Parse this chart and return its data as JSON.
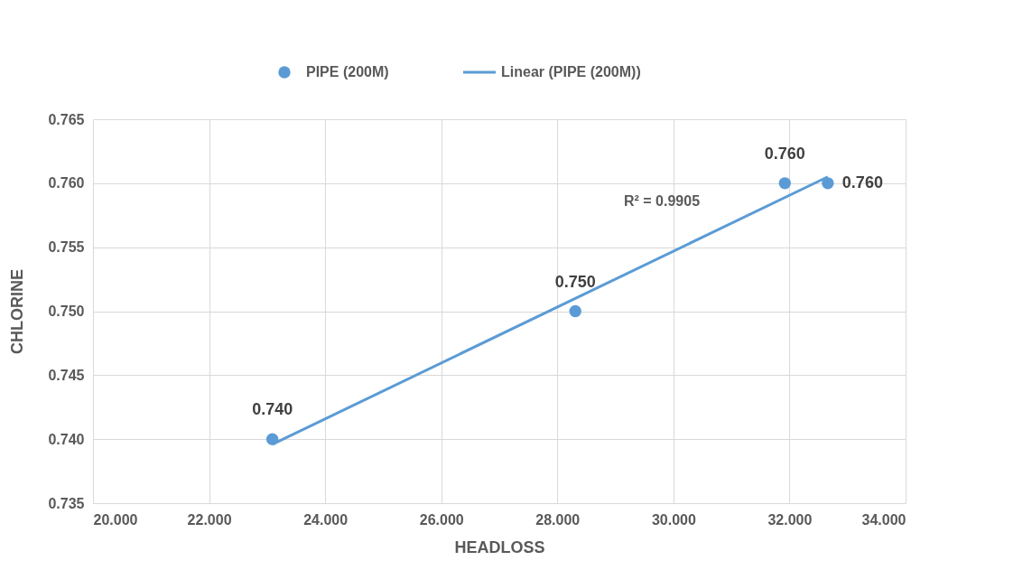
{
  "chart_data": {
    "type": "scatter",
    "xlabel": "HEADLOSS",
    "ylabel": "CHLORINE",
    "xlim": [
      20,
      34
    ],
    "xticks": [
      {
        "value": 20,
        "label": "20.000"
      },
      {
        "value": 22,
        "label": "22.000"
      },
      {
        "value": 24,
        "label": "24.000"
      },
      {
        "value": 26,
        "label": "26.000"
      },
      {
        "value": 28,
        "label": "28.000"
      },
      {
        "value": 30,
        "label": "30.000"
      },
      {
        "value": 32,
        "label": "32.000"
      },
      {
        "value": 34,
        "label": "34.000"
      }
    ],
    "ylim": [
      0.735,
      0.765
    ],
    "yticks": [
      0.735,
      {
        "value": 0.74,
        "label": "0.740"
      },
      0.745,
      {
        "value": 0.75,
        "label": "0.750"
      },
      0.755,
      {
        "value": 0.76,
        "label": "0.760"
      },
      0.765
    ],
    "grid": true,
    "legend": "top",
    "series": [
      {
        "name": "PIPE (200M)",
        "marker": "circle",
        "color": "#5b9bd5",
        "x": [
          23.09,
          28.31,
          31.92,
          32.66
        ],
        "values": [
          0.74,
          0.75,
          0.76,
          0.76
        ],
        "value_labels": [
          "0.740",
          "0.750",
          "0.760",
          "0.760"
        ]
      },
      {
        "name": "Linear (PIPE (200M))",
        "type": "line",
        "line_style": "solid",
        "color": "#5b9bd5",
        "x": [
          23.09,
          32.66
        ],
        "values": [
          0.7396,
          0.7605
        ]
      }
    ],
    "annotations": [
      "R² = 0.9905"
    ]
  }
}
